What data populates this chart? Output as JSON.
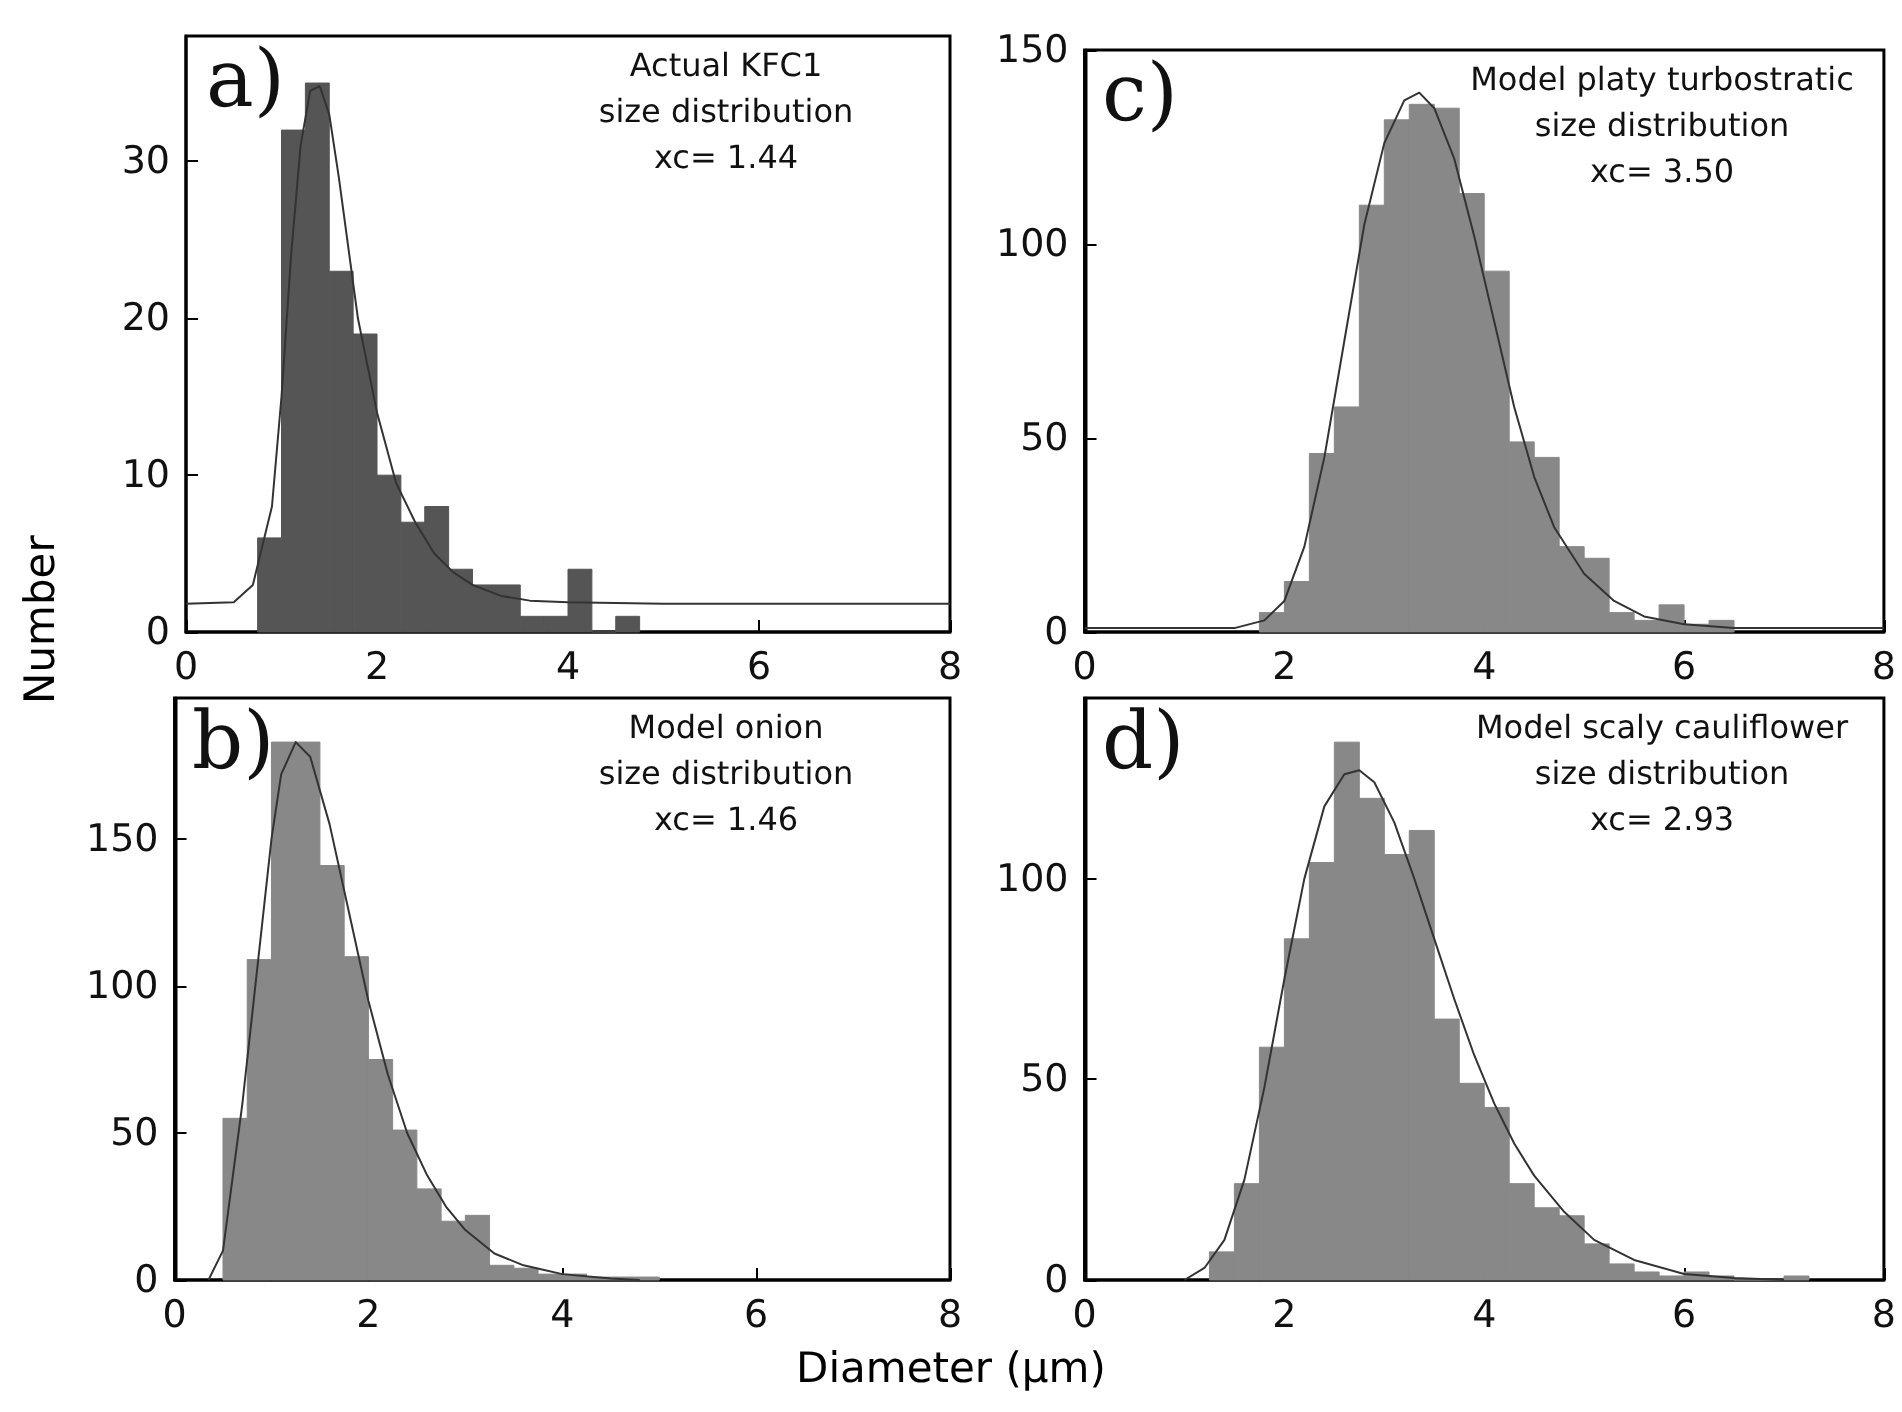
{
  "chart_data": [
    {
      "type": "histogram",
      "ylabel": "Number",
      "annotations": [
        "a)",
        "Actual KFC1\nsize distribution\nxc= 1.44"
      ],
      "xlim": [
        0,
        8
      ],
      "xticks": [
        0,
        2,
        4,
        6,
        8
      ],
      "ylim": [
        0,
        38
      ],
      "yticks": [
        0,
        10,
        20,
        30
      ],
      "series": [
        {
          "type": "histogram",
          "color": "#555555",
          "bins": [
            0.75,
            1.0,
            1.25,
            1.5,
            1.75,
            2.0,
            2.25,
            2.5,
            2.75,
            3.0,
            3.25,
            3.5,
            3.75,
            4.0,
            4.25,
            4.5,
            4.75
          ],
          "values": [
            6,
            32,
            35,
            23,
            19,
            10,
            7,
            8,
            4,
            3,
            3,
            1,
            1,
            4,
            0,
            1
          ]
        },
        {
          "type": "line",
          "color": "#333333",
          "x": [
            0,
            0.5,
            0.7,
            0.9,
            1.0,
            1.1,
            1.2,
            1.3,
            1.4,
            1.5,
            1.6,
            1.8,
            2.0,
            2.2,
            2.4,
            2.6,
            2.8,
            3.0,
            3.3,
            3.6,
            4.0,
            5.0,
            8.0
          ],
          "values": [
            1.8,
            1.9,
            3,
            8,
            15,
            24,
            31,
            34.5,
            34.8,
            33,
            29,
            20,
            14,
            9.5,
            7,
            5,
            3.8,
            3,
            2.3,
            2,
            1.9,
            1.8,
            1.8
          ]
        }
      ]
    },
    {
      "type": "histogram",
      "annotations": [
        "c)",
        "Model platy turbostratic\nsize distribution\nxc= 3.50"
      ],
      "xlim": [
        0,
        8
      ],
      "xticks": [
        0,
        2,
        4,
        6,
        8
      ],
      "ylim": [
        0,
        150
      ],
      "yticks": [
        0,
        50,
        100,
        150
      ],
      "series": [
        {
          "type": "histogram",
          "color": "#888888",
          "bins": [
            1.75,
            2.0,
            2.25,
            2.5,
            2.75,
            3.0,
            3.25,
            3.5,
            3.75,
            4.0,
            4.25,
            4.5,
            4.75,
            5.0,
            5.25,
            5.5,
            5.75,
            6.0,
            6.25,
            6.5
          ],
          "values": [
            5,
            13,
            46,
            58,
            110,
            132,
            136,
            135,
            113,
            93,
            49,
            45,
            22,
            19,
            5,
            3,
            7,
            2,
            3
          ]
        },
        {
          "type": "line",
          "color": "#333333",
          "x": [
            0,
            1.5,
            1.8,
            2.0,
            2.2,
            2.4,
            2.6,
            2.8,
            3.0,
            3.2,
            3.35,
            3.5,
            3.7,
            3.9,
            4.1,
            4.3,
            4.5,
            4.7,
            5.0,
            5.3,
            5.6,
            6.0,
            6.5,
            8.0
          ],
          "values": [
            1,
            1,
            3,
            8,
            22,
            45,
            75,
            105,
            126,
            137,
            139,
            135,
            122,
            102,
            80,
            58,
            40,
            27,
            15,
            8,
            4,
            2,
            1,
            1
          ]
        }
      ]
    },
    {
      "type": "histogram",
      "xlabel": "Diameter (μm)",
      "annotations": [
        "b)",
        "Model onion\nsize distribution\nxc= 1.46"
      ],
      "xlim": [
        0,
        8
      ],
      "xticks": [
        0,
        2,
        4,
        6,
        8
      ],
      "ylim": [
        0,
        198
      ],
      "yticks": [
        0,
        50,
        100,
        150
      ],
      "series": [
        {
          "type": "histogram",
          "color": "#888888",
          "bins": [
            0.5,
            0.75,
            1.0,
            1.25,
            1.5,
            1.75,
            2.0,
            2.25,
            2.5,
            2.75,
            3.0,
            3.25,
            3.5,
            3.75,
            4.0,
            4.25,
            4.5,
            4.75,
            5.0
          ],
          "values": [
            55,
            109,
            183,
            183,
            141,
            110,
            75,
            51,
            31,
            20,
            22,
            5,
            4,
            2,
            2,
            1,
            1,
            1
          ]
        },
        {
          "type": "line",
          "color": "#333333",
          "x": [
            0.35,
            0.5,
            0.7,
            0.9,
            1.0,
            1.1,
            1.25,
            1.4,
            1.6,
            1.8,
            2.0,
            2.2,
            2.4,
            2.6,
            2.8,
            3.0,
            3.3,
            3.6,
            4.0,
            4.5,
            4.8
          ],
          "values": [
            0,
            10,
            60,
            120,
            150,
            172,
            183,
            178,
            155,
            125,
            95,
            70,
            50,
            36,
            25,
            17,
            9,
            5,
            2,
            0.5,
            0
          ]
        }
      ]
    },
    {
      "type": "histogram",
      "annotations": [
        "d)",
        "Model scaly cauliflower\nsize distribution\nxc= 2.93"
      ],
      "xlim": [
        0,
        8
      ],
      "xticks": [
        0,
        2,
        4,
        6,
        8
      ],
      "ylim": [
        0,
        145
      ],
      "yticks": [
        0,
        50,
        100
      ],
      "series": [
        {
          "type": "histogram",
          "color": "#888888",
          "bins": [
            1.25,
            1.5,
            1.75,
            2.0,
            2.25,
            2.5,
            2.75,
            3.0,
            3.25,
            3.5,
            3.75,
            4.0,
            4.25,
            4.5,
            4.75,
            5.0,
            5.25,
            5.5,
            5.75,
            6.0,
            6.25,
            6.5,
            6.75,
            7.0,
            7.25
          ],
          "values": [
            7,
            24,
            58,
            85,
            104,
            134,
            120,
            106,
            112,
            65,
            49,
            43,
            24,
            18,
            16,
            9,
            4,
            2,
            1,
            2,
            1,
            0,
            0,
            1
          ]
        },
        {
          "type": "line",
          "color": "#333333",
          "x": [
            1.0,
            1.2,
            1.4,
            1.6,
            1.8,
            2.0,
            2.2,
            2.4,
            2.6,
            2.75,
            2.9,
            3.1,
            3.3,
            3.5,
            3.7,
            3.9,
            4.1,
            4.3,
            4.5,
            4.8,
            5.1,
            5.5,
            6.0,
            6.5,
            7.0
          ],
          "values": [
            0,
            3,
            10,
            25,
            48,
            75,
            100,
            118,
            126,
            127,
            124,
            114,
            100,
            85,
            70,
            56,
            44,
            34,
            26,
            17,
            10,
            5,
            1.5,
            0.5,
            0
          ]
        }
      ]
    }
  ]
}
